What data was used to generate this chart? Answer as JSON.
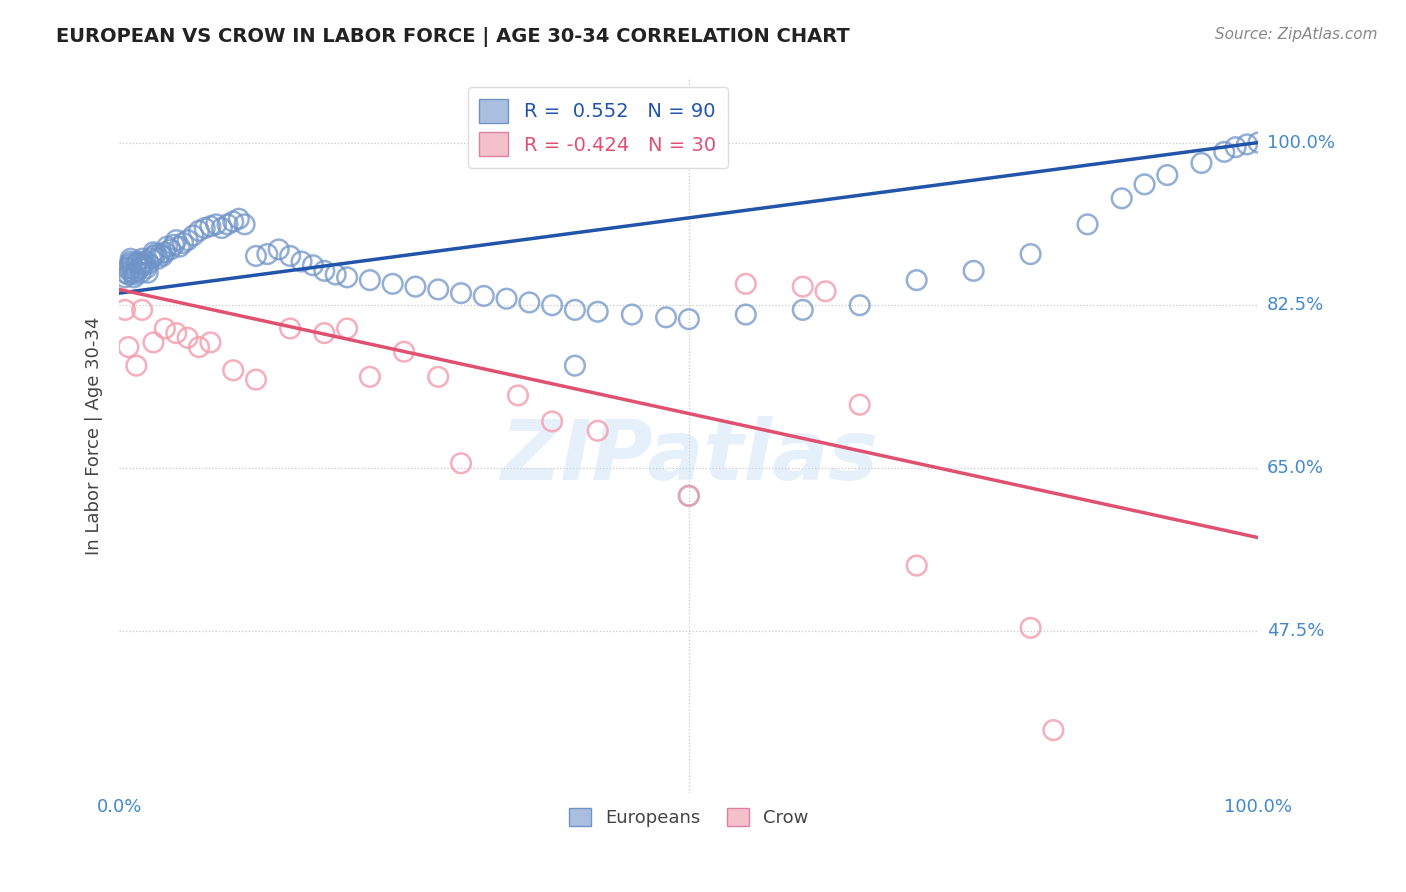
{
  "title": "EUROPEAN VS CROW IN LABOR FORCE | AGE 30-34 CORRELATION CHART",
  "source": "Source: ZipAtlas.com",
  "ylabel": "In Labor Force | Age 30-34",
  "xlim": [
    0.0,
    1.0
  ],
  "ylim": [
    0.3,
    1.07
  ],
  "yticks": [
    0.475,
    0.65,
    0.825,
    1.0
  ],
  "ytick_labels": [
    "47.5%",
    "65.0%",
    "82.5%",
    "100.0%"
  ],
  "xtick_labels": [
    "0.0%",
    "100.0%"
  ],
  "xticks": [
    0.0,
    1.0
  ],
  "blue_R": 0.552,
  "blue_N": 90,
  "pink_R": -0.424,
  "pink_N": 30,
  "blue_color": "#7094c8",
  "pink_color": "#f4a0b0",
  "blue_line_color": "#2255aa",
  "pink_line_color": "#e05070",
  "watermark": "ZIPatlas",
  "tick_color": "#4488cc",
  "grid_color": "#c8c8c8",
  "background_color": "#ffffff",
  "blue_scatter_x": [
    0.005,
    0.005,
    0.007,
    0.008,
    0.009,
    0.01,
    0.01,
    0.01,
    0.01,
    0.01,
    0.012,
    0.013,
    0.014,
    0.015,
    0.015,
    0.017,
    0.018,
    0.019,
    0.02,
    0.02,
    0.022,
    0.023,
    0.024,
    0.025,
    0.026,
    0.028,
    0.03,
    0.03,
    0.032,
    0.034,
    0.036,
    0.038,
    0.04,
    0.042,
    0.045,
    0.048,
    0.05,
    0.053,
    0.056,
    0.06,
    0.065,
    0.07,
    0.075,
    0.08,
    0.085,
    0.09,
    0.095,
    0.1,
    0.105,
    0.11,
    0.12,
    0.13,
    0.14,
    0.15,
    0.16,
    0.17,
    0.18,
    0.19,
    0.2,
    0.22,
    0.24,
    0.26,
    0.28,
    0.3,
    0.32,
    0.34,
    0.36,
    0.38,
    0.4,
    0.42,
    0.45,
    0.48,
    0.5,
    0.55,
    0.6,
    0.65,
    0.7,
    0.75,
    0.8,
    0.85,
    0.88,
    0.9,
    0.92,
    0.95,
    0.97,
    0.98,
    0.99,
    1.0,
    0.4,
    0.5
  ],
  "blue_scatter_y": [
    0.855,
    0.86,
    0.865,
    0.858,
    0.862,
    0.868,
    0.872,
    0.875,
    0.87,
    0.865,
    0.86,
    0.855,
    0.858,
    0.862,
    0.87,
    0.872,
    0.865,
    0.86,
    0.87,
    0.875,
    0.868,
    0.872,
    0.865,
    0.86,
    0.87,
    0.875,
    0.878,
    0.882,
    0.88,
    0.875,
    0.88,
    0.878,
    0.882,
    0.888,
    0.885,
    0.89,
    0.895,
    0.888,
    0.892,
    0.895,
    0.9,
    0.905,
    0.908,
    0.91,
    0.912,
    0.908,
    0.912,
    0.915,
    0.918,
    0.912,
    0.878,
    0.88,
    0.885,
    0.878,
    0.872,
    0.868,
    0.862,
    0.858,
    0.855,
    0.852,
    0.848,
    0.845,
    0.842,
    0.838,
    0.835,
    0.832,
    0.828,
    0.825,
    0.82,
    0.818,
    0.815,
    0.812,
    0.81,
    0.815,
    0.82,
    0.825,
    0.852,
    0.862,
    0.88,
    0.912,
    0.94,
    0.955,
    0.965,
    0.978,
    0.99,
    0.995,
    0.998,
    1.0,
    0.76,
    0.62
  ],
  "pink_scatter_x": [
    0.005,
    0.008,
    0.015,
    0.02,
    0.03,
    0.04,
    0.05,
    0.06,
    0.07,
    0.08,
    0.1,
    0.12,
    0.15,
    0.18,
    0.2,
    0.22,
    0.25,
    0.28,
    0.3,
    0.35,
    0.38,
    0.42,
    0.5,
    0.55,
    0.6,
    0.62,
    0.65,
    0.7,
    0.8,
    0.82
  ],
  "pink_scatter_y": [
    0.82,
    0.78,
    0.76,
    0.82,
    0.785,
    0.8,
    0.795,
    0.79,
    0.78,
    0.785,
    0.755,
    0.745,
    0.8,
    0.795,
    0.8,
    0.748,
    0.775,
    0.748,
    0.655,
    0.728,
    0.7,
    0.69,
    0.62,
    0.848,
    0.845,
    0.84,
    0.718,
    0.545,
    0.478,
    0.368
  ],
  "blue_trend_x": [
    0.0,
    1.0
  ],
  "blue_trend_y": [
    0.838,
    1.0
  ],
  "pink_trend_x": [
    0.0,
    1.0
  ],
  "pink_trend_y": [
    0.842,
    0.575
  ]
}
